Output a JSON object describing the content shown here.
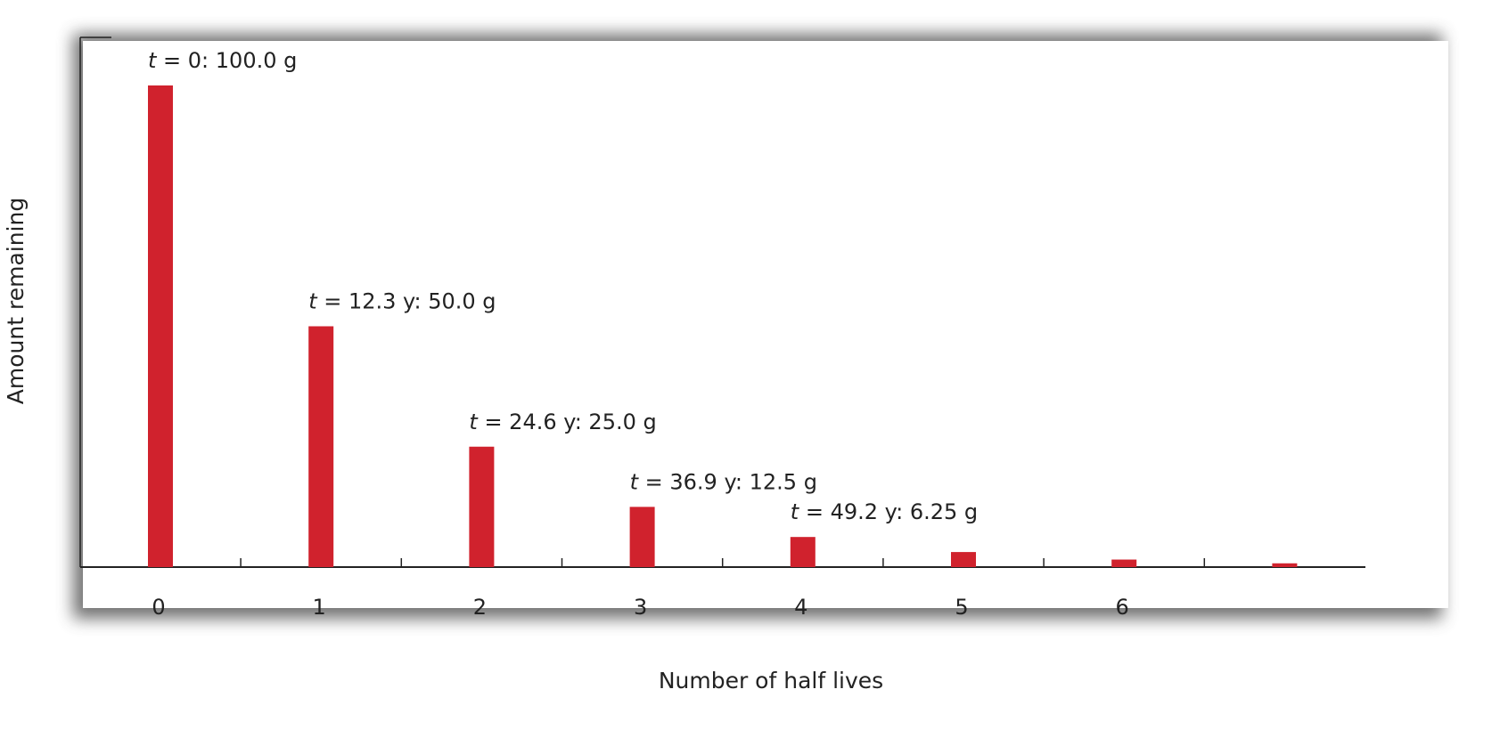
{
  "chart_data": {
    "type": "bar",
    "title": "",
    "xlabel": "Number of half lives",
    "ylabel": "Amount remaining",
    "categories": [
      "0",
      "1",
      "2",
      "3",
      "4",
      "5",
      "6",
      ""
    ],
    "values": [
      100.0,
      50.0,
      25.0,
      12.5,
      6.25,
      3.125,
      1.5625,
      0.78125
    ],
    "ylim": [
      0,
      100
    ],
    "grid": false,
    "legend": "none",
    "bar_color": "#d0222d",
    "annotations": [
      {
        "index": 0,
        "var": "t",
        "text": " = 0:  100.0 g"
      },
      {
        "index": 1,
        "var": "t",
        "text": " = 12.3 y:  50.0 g"
      },
      {
        "index": 2,
        "var": "t",
        "text": " = 24.6 y:  25.0 g"
      },
      {
        "index": 3,
        "var": "t",
        "text": " = 36.9 y:  12.5 g"
      },
      {
        "index": 4,
        "var": "t",
        "text": " = 49.2 y:  6.25 g"
      }
    ]
  }
}
